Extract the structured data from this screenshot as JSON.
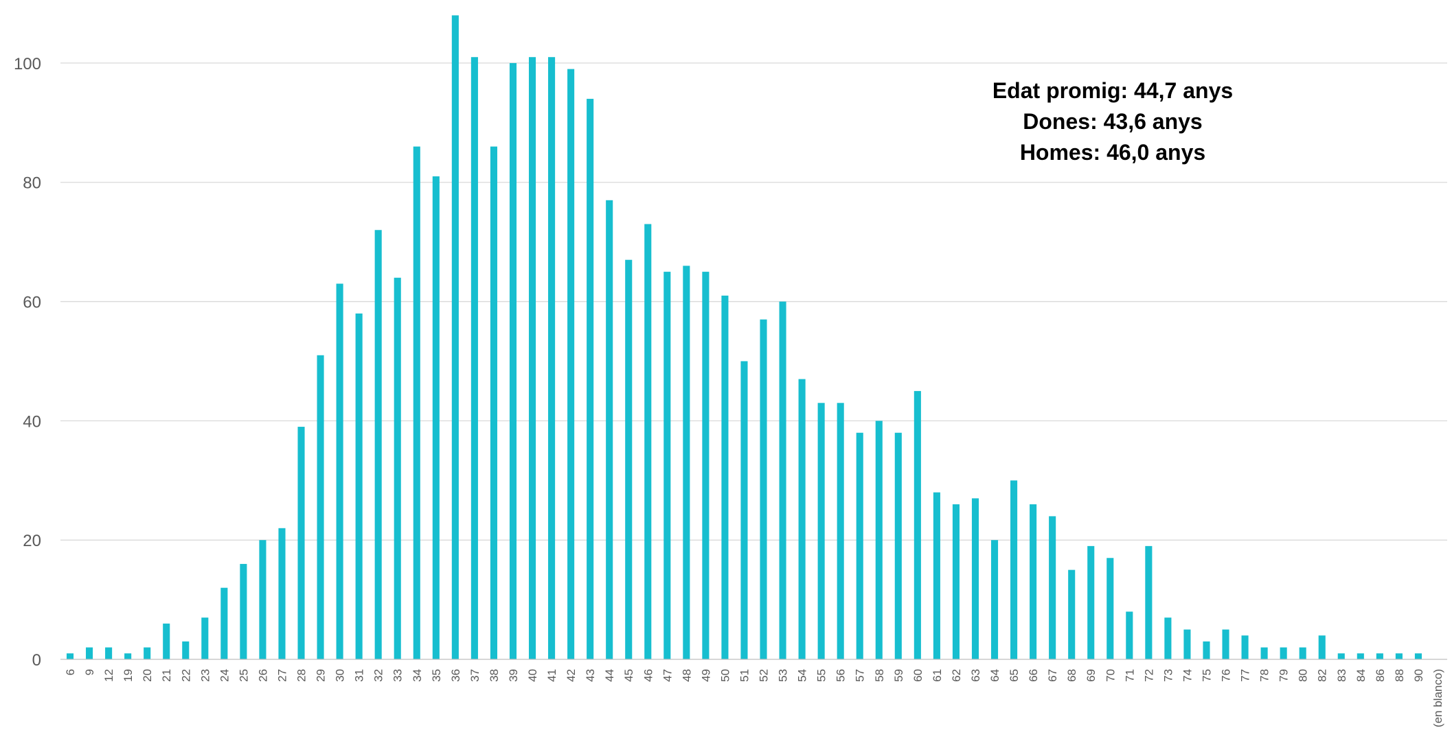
{
  "chart_data": {
    "type": "bar",
    "categories": [
      "6",
      "9",
      "12",
      "19",
      "20",
      "21",
      "22",
      "23",
      "24",
      "25",
      "26",
      "27",
      "28",
      "29",
      "30",
      "31",
      "32",
      "33",
      "34",
      "35",
      "36",
      "37",
      "38",
      "39",
      "40",
      "41",
      "42",
      "43",
      "44",
      "45",
      "46",
      "47",
      "48",
      "49",
      "50",
      "51",
      "52",
      "53",
      "54",
      "55",
      "56",
      "57",
      "58",
      "59",
      "60",
      "61",
      "62",
      "63",
      "64",
      "65",
      "66",
      "67",
      "68",
      "69",
      "70",
      "71",
      "72",
      "73",
      "74",
      "75",
      "76",
      "77",
      "78",
      "79",
      "80",
      "82",
      "83",
      "84",
      "86",
      "88",
      "90",
      "(en blanco)"
    ],
    "values": [
      1,
      2,
      2,
      1,
      2,
      6,
      3,
      7,
      12,
      16,
      20,
      22,
      39,
      51,
      63,
      58,
      72,
      64,
      86,
      81,
      108,
      101,
      86,
      100,
      101,
      101,
      99,
      94,
      77,
      67,
      73,
      65,
      66,
      65,
      61,
      50,
      57,
      60,
      47,
      43,
      43,
      38,
      40,
      38,
      45,
      28,
      26,
      27,
      20,
      30,
      26,
      24,
      15,
      19,
      17,
      8,
      19,
      7,
      5,
      3,
      5,
      4,
      2,
      2,
      2,
      4,
      1,
      1,
      1,
      1,
      1,
      0
    ],
    "ylim": [
      0,
      110
    ],
    "yticks": [
      0,
      20,
      40,
      60,
      80,
      100
    ],
    "grid": true,
    "bar_color": "#17becf",
    "annotations": [
      "Edat promig: 44,7 anys",
      "Dones: 43,6 anys",
      "Homes: 46,0 anys"
    ]
  }
}
